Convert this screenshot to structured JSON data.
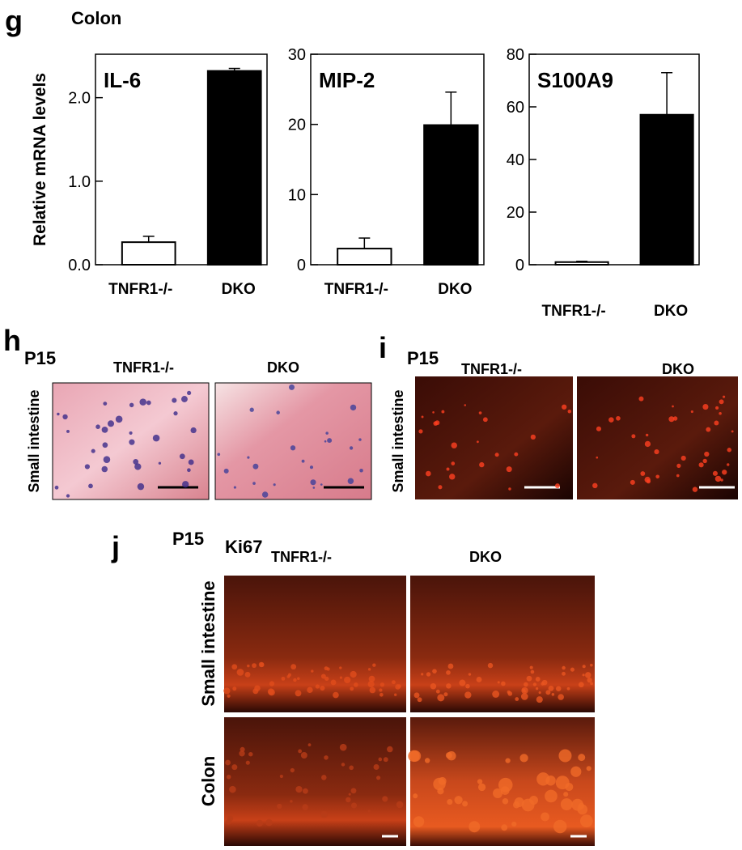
{
  "chart_data": [
    {
      "type": "bar",
      "title": "IL-6",
      "ylabel": "Relative mRNA levels",
      "categories": [
        "TNFR1-/-",
        "DKO"
      ],
      "values": [
        0.27,
        2.32
      ],
      "errors": [
        0.07,
        0.03
      ],
      "colors": [
        "#ffffff",
        "#000000"
      ],
      "ylim": [
        0,
        2.52
      ],
      "yticks": [
        {
          "value": 0,
          "label": "0.0"
        },
        {
          "value": 1,
          "label": "1.0"
        },
        {
          "value": 2,
          "label": "2.0"
        }
      ]
    },
    {
      "type": "bar",
      "title": "MIP-2",
      "categories": [
        "TNFR1-/-",
        "DKO"
      ],
      "values": [
        2.3,
        19.9
      ],
      "errors": [
        1.5,
        4.7
      ],
      "colors": [
        "#ffffff",
        "#000000"
      ],
      "ylim": [
        0,
        30
      ],
      "yticks": [
        0,
        10,
        20,
        30
      ]
    },
    {
      "type": "bar",
      "title": "S100A9",
      "categories": [
        "TNFR1-/-",
        "DKO"
      ],
      "values": [
        1,
        57
      ],
      "errors": [
        0.3,
        16
      ],
      "colors": [
        "#ffffff",
        "#000000"
      ],
      "ylim": [
        0,
        80
      ],
      "yticks": [
        0,
        20,
        40,
        60,
        80
      ]
    }
  ],
  "panel_g": {
    "label": "g",
    "title": "Colon"
  },
  "panel_h": {
    "label": "h",
    "stage": "P15",
    "columns": [
      "TNFR1-/-",
      "DKO"
    ],
    "row": "Small intestine"
  },
  "panel_i": {
    "label": "i",
    "stage": "P15",
    "columns": [
      "TNFR1-/-",
      "DKO"
    ],
    "row": "Small intestine"
  },
  "panel_j": {
    "label": "j",
    "stage": "P15",
    "stain": "Ki67",
    "columns": [
      "TNFR1-/-",
      "DKO"
    ],
    "rows": [
      "Small intestine",
      "Colon"
    ]
  }
}
